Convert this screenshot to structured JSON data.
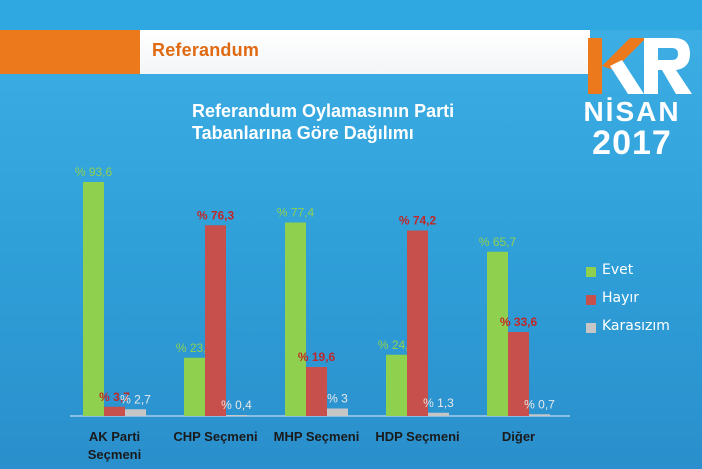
{
  "header": {
    "title": "Referandum"
  },
  "logo": {
    "mark": "KR",
    "month": "NİSAN",
    "year": "2017"
  },
  "colors": {
    "evet": "#8fd14f",
    "hayir": "#c8504c",
    "karasizim": "#c6c6c6",
    "header_accent": "#ec7a1c",
    "background": "#2fa7e0"
  },
  "chart_data": {
    "type": "bar",
    "title": "Referandum Oylamasının Parti Tabanlarına Göre Dağılımı",
    "title_lines": [
      "Referandum Oylamasının Parti",
      "Tabanlarına Göre Dağılımı"
    ],
    "categories": [
      "AK Parti Seçmeni",
      "CHP Seçmeni",
      "MHP Seçmeni",
      "HDP Seçmeni",
      "Diğer"
    ],
    "series": [
      {
        "name": "Evet",
        "values": [
          93.6,
          23.3,
          77.4,
          24.5,
          65.7
        ],
        "labels": [
          "% 93,6",
          "% 23,3",
          "% 77,4",
          "% 24,5",
          "% 65,7"
        ]
      },
      {
        "name": "Hayır",
        "values": [
          3.7,
          76.3,
          19.6,
          74.2,
          33.6
        ],
        "labels": [
          "% 3,7",
          "% 76,3",
          "% 19,6",
          "% 74,2",
          "% 33,6"
        ]
      },
      {
        "name": "Karasızım",
        "values": [
          2.7,
          0.4,
          3,
          1.3,
          0.7
        ],
        "labels": [
          "% 2,7",
          "% 0,4",
          "% 3",
          "% 1,3",
          "% 0,7"
        ]
      }
    ],
    "ylim": [
      0,
      100
    ],
    "grid": false,
    "legend": "right"
  }
}
